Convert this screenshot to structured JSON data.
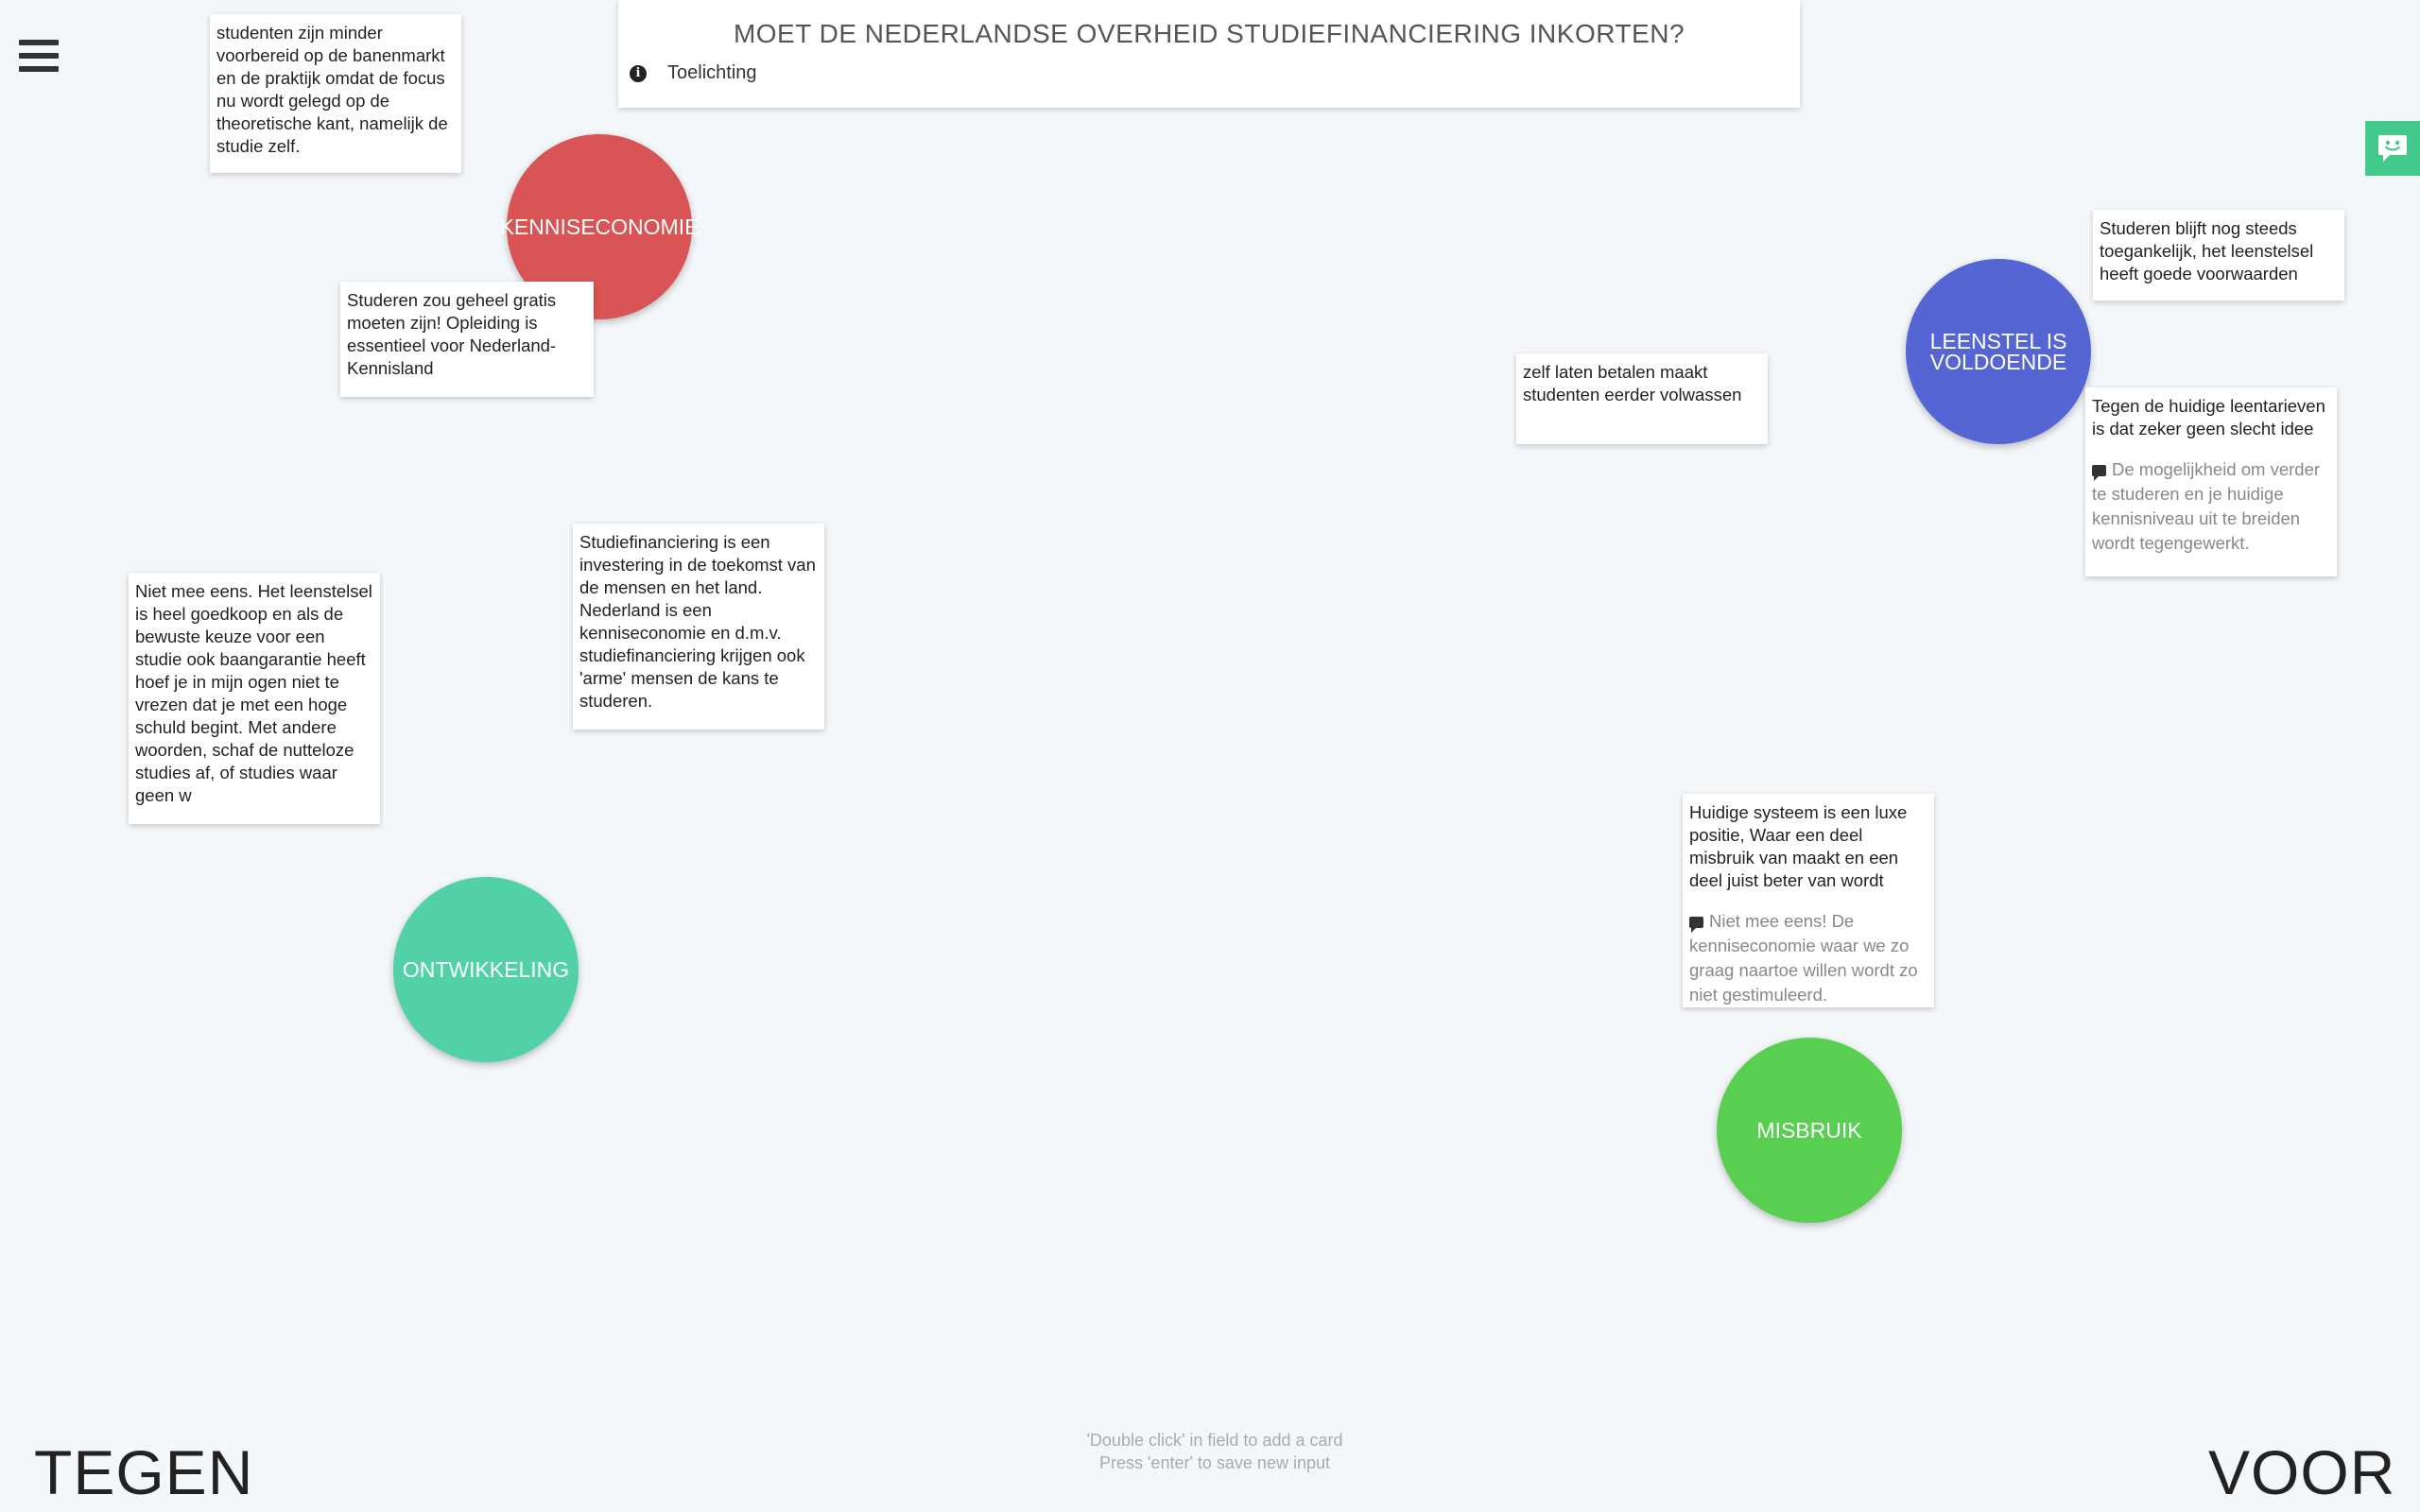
{
  "question": {
    "title": "MOET DE NEDERLANDSE OVERHEID STUDIEFINANCIERING INKORTEN?",
    "info_label": "Toelichting"
  },
  "labels": {
    "left": "TEGEN",
    "right": "VOOR"
  },
  "hint": {
    "line1": "'Double click' in field to add a card",
    "line2": "Press 'enter' to save new input"
  },
  "colors": {
    "kenniseconomie": "#d95454",
    "leenstelsel": "#5566d4",
    "ontwikkeling": "#52d0a6",
    "misbruik": "#58cf50",
    "chat": "#44c98d"
  },
  "topics": {
    "kenniseconomie": "KENNISECONOMIE",
    "leenstelsel_line1": "LEENSTEL IS",
    "leenstelsel_line2": "VOLDOENDE",
    "ontwikkeling": "ONTWIKKELING",
    "misbruik": "MISBRUIK"
  },
  "cards": {
    "c1": "studenten zijn minder voorbereid op de banenmarkt en de praktijk omdat de focus nu wordt gelegd op de theoretische kant, namelijk de studie zelf.",
    "c2": "Studeren zou geheel gratis moeten zijn! Opleiding is essentieel voor Nederland-Kennisland",
    "c3": "Studiefinanciering is een investering in de toekomst van de mensen en het land. Nederland is een kenniseconomie en d.m.v. studiefinanciering krijgen ook 'arme' mensen de kans te studeren.",
    "c4": "Niet mee eens. Het leenstelsel is heel goedkoop en als de bewuste keuze voor een studie ook baangarantie heeft hoef je in mijn ogen niet te vrezen dat je met een hoge schuld begint. Met andere woorden, schaf de nutteloze studies af, of studies waar geen w",
    "c5": "zelf laten betalen maakt studenten eerder volwassen",
    "c6": "Studeren blijft nog steeds toegankelijk, het leenstelsel heeft goede voorwaarden",
    "c7": "Tegen de huidige leentarieven is dat zeker geen slecht idee",
    "c7_comment": "De mogelijkheid om verder te studeren en je huidige kennisniveau uit te breiden wordt tegengewerkt.",
    "c8": "Huidige systeem is een luxe positie, Waar een deel misbruik van maakt en een deel juist beter van wordt",
    "c8_comment": "Niet mee eens! De kenniseconomie waar we zo graag naartoe willen wordt zo niet gestimuleerd."
  }
}
